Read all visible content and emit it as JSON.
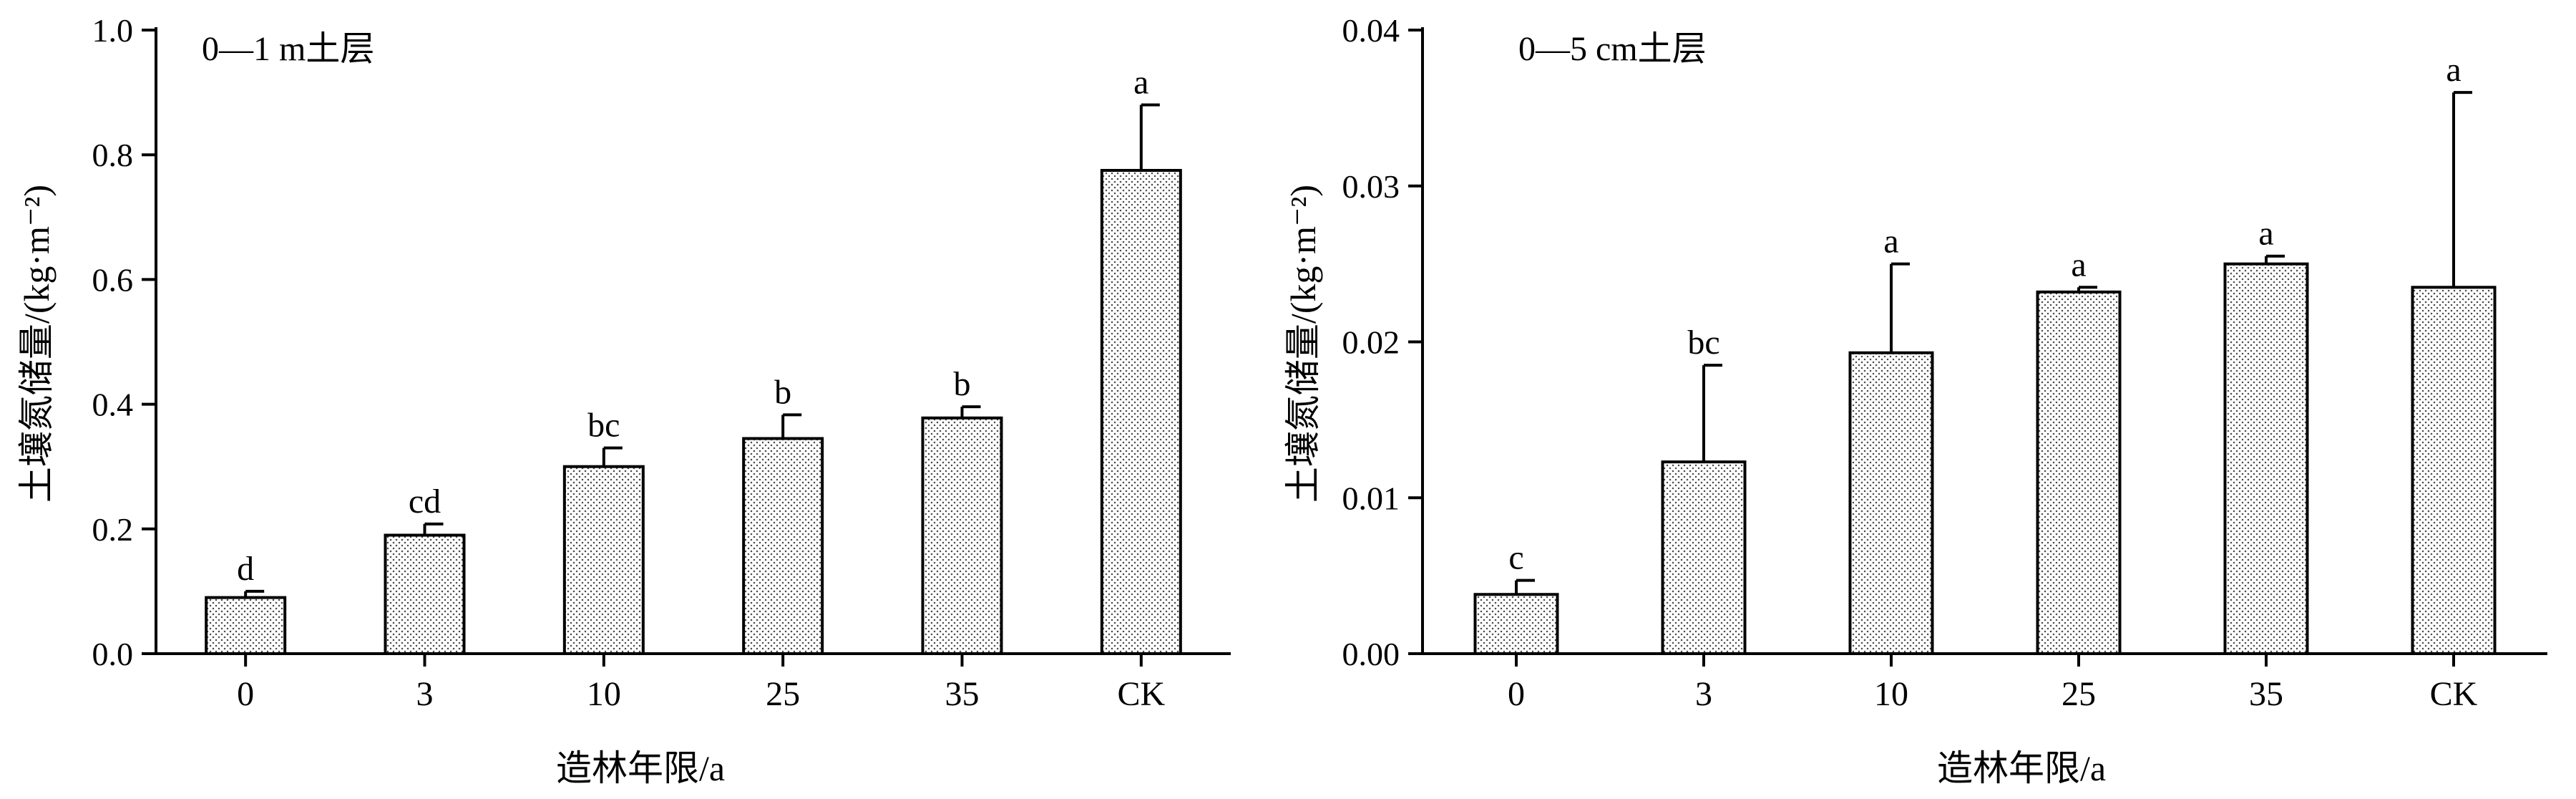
{
  "chart_data": [
    {
      "type": "bar",
      "title": "0—1 m土层",
      "xlabel": "造林年限/a",
      "ylabel": "土壤氮储量/(kg·m⁻²)",
      "categories": [
        "0",
        "3",
        "10",
        "25",
        "35",
        "CK"
      ],
      "values": [
        0.09,
        0.19,
        0.3,
        0.345,
        0.378,
        0.775
      ],
      "errors": [
        0.01,
        0.018,
        0.03,
        0.038,
        0.018,
        0.105
      ],
      "letters": [
        "d",
        "cd",
        "bc",
        "b",
        "b",
        "a"
      ],
      "ylim": [
        0,
        1.0
      ],
      "yticks": [
        "0.0",
        "0.2",
        "0.4",
        "0.6",
        "0.8",
        "1.0"
      ],
      "grid": false
    },
    {
      "type": "bar",
      "title": "0—5 cm土层",
      "xlabel": "造林年限/a",
      "ylabel": "土壤氮储量/(kg·m⁻²)",
      "categories": [
        "0",
        "3",
        "10",
        "25",
        "35",
        "CK"
      ],
      "values": [
        0.0038,
        0.0123,
        0.0193,
        0.0232,
        0.025,
        0.0235
      ],
      "errors": [
        0.0009,
        0.0062,
        0.0057,
        0.0003,
        0.0005,
        0.0125
      ],
      "letters": [
        "c",
        "bc",
        "a",
        "a",
        "a",
        "a"
      ],
      "ylim": [
        0,
        0.04
      ],
      "yticks": [
        "0.00",
        "0.01",
        "0.02",
        "0.03",
        "0.04"
      ],
      "grid": false
    }
  ],
  "colors": {
    "bar_fill_dot": "#555555",
    "axis": "#000000"
  }
}
